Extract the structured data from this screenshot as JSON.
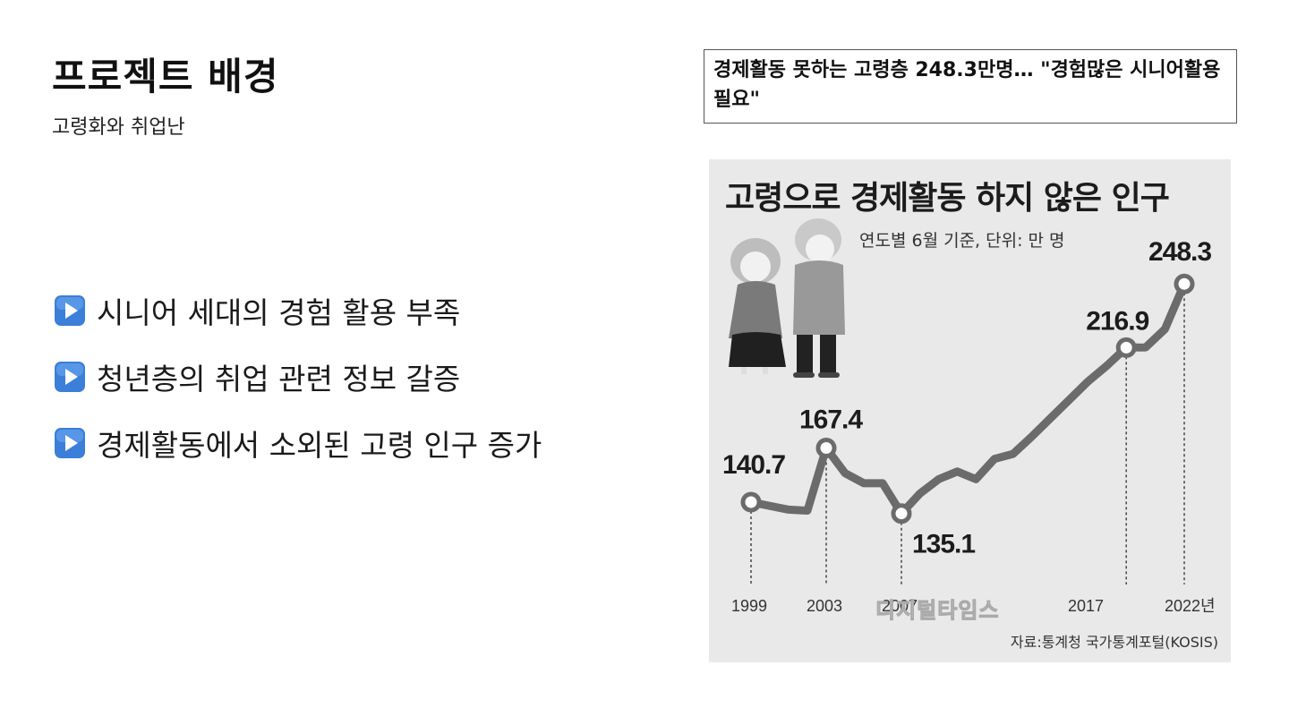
{
  "slide": {
    "title": "프로젝트 배경",
    "subtitle": "고령화와 취업난"
  },
  "bullets": [
    {
      "icon": "play-button-icon",
      "text": "시니어 세대의 경험 활용 부족"
    },
    {
      "icon": "play-button-icon",
      "text": "청년층의 취업 관련 정보 갈증"
    },
    {
      "icon": "play-button-icon",
      "text": "경제활동에서 소외된 고령 인구 증가"
    }
  ],
  "news": {
    "headline": "경제활동 못하는 고령층 248.3만명… \"경험많은 시니어활용 필요\""
  },
  "colors": {
    "bullet_icon": "#3b7fd8",
    "chart_line": "#6b6b6b",
    "figure_bg": "#e9e9e9"
  },
  "figure": {
    "watermark": "디지털타임스",
    "illustration": "elderly-couple-illustration"
  },
  "chart_data": {
    "type": "line",
    "title": "고령으로 경제활동 하지 않은 인구",
    "subtitle": "연도별 6월 기준, 단위: 만 명",
    "source": "자료:통계청 국가통계포털(KOSIS)",
    "x_tick_labels": [
      "1999",
      "2003",
      "2007",
      "2017",
      "2022년"
    ],
    "series": [
      {
        "x": [
          1999,
          2001,
          2002,
          2003,
          2004,
          2005,
          2006,
          2007,
          2008,
          2009,
          2010,
          2011,
          2012,
          2013,
          2014,
          2015,
          2016,
          2017,
          2018,
          2019,
          2020,
          2021,
          2022
        ],
        "values": [
          140.7,
          137.0,
          136.5,
          167.4,
          155.0,
          150.0,
          150.0,
          135.1,
          145.0,
          152.0,
          155.8,
          152.0,
          162.0,
          164.5,
          173.0,
          182.0,
          191.0,
          200.0,
          208.0,
          216.9,
          217.0,
          226.0,
          248.3
        ]
      }
    ],
    "labeled_points": [
      {
        "x": 1999,
        "label": "140.7"
      },
      {
        "x": 2003,
        "label": "167.4"
      },
      {
        "x": 2007,
        "label": "135.1"
      },
      {
        "x": 2019,
        "label": "216.9"
      },
      {
        "x": 2022,
        "label": "248.3"
      }
    ],
    "grid": false
  }
}
